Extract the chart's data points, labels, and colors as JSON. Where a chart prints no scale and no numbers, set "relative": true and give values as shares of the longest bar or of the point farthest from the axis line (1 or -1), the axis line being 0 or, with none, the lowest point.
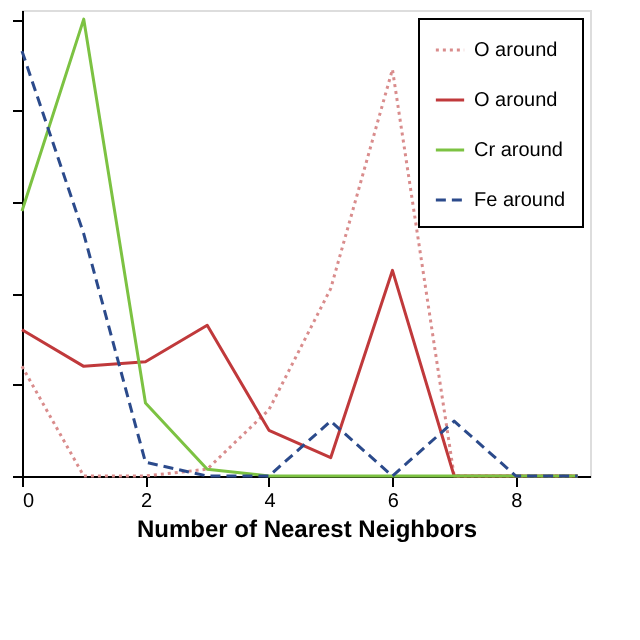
{
  "chart_data": {
    "type": "line",
    "xlabel": "Number of Nearest Neighbors",
    "relative": true,
    "x": [
      0,
      1,
      2,
      3,
      4,
      5,
      6,
      7,
      8,
      9
    ],
    "xlim": [
      0,
      9.2
    ],
    "xticks": [
      0,
      2,
      4,
      6,
      8
    ],
    "grid": false,
    "legend": "top right",
    "marker": "none",
    "series": [
      {
        "name": "O around",
        "color": "#d98c8c",
        "line_style": "dotted",
        "values": [
          0.24,
          0,
          0,
          0.015,
          0.145,
          0.41,
          0.89,
          0,
          0,
          0
        ]
      },
      {
        "name": "O around",
        "color": "#c0393b",
        "line_style": "solid",
        "values": [
          0.32,
          0.24,
          0.25,
          0.33,
          0.1,
          0.04,
          0.45,
          0,
          0,
          0
        ]
      },
      {
        "name": "Cr around",
        "color": "#7cc242",
        "line_style": "solid",
        "values": [
          0.58,
          1,
          0.16,
          0.015,
          0,
          0,
          0,
          0,
          0,
          0
        ]
      },
      {
        "name": "Fe around",
        "color": "#2b4a8b",
        "line_style": "dashed",
        "values": [
          0.93,
          0.53,
          0.03,
          0,
          0,
          0.12,
          0,
          0.12,
          0,
          0
        ]
      }
    ]
  }
}
